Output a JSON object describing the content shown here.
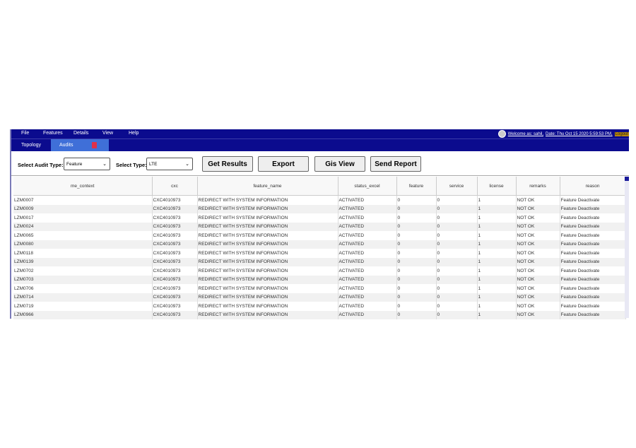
{
  "menu": [
    "File",
    "Features",
    "Details",
    "View",
    "Help"
  ],
  "user": {
    "welcome": "Welcome as: sahil,",
    "date": "Date: Thu Oct 15 2020 5:59:53 PM,",
    "logout": "Logout"
  },
  "tabs": [
    "Topology",
    "Audits"
  ],
  "toolbar": {
    "audit_label": "Select Audit Type:",
    "audit_value": "Feature",
    "type_label": "Select Type:",
    "type_value": "LTE",
    "get_results": "Get Results",
    "export": "Export",
    "gis_view": "Gis View",
    "send_report": "Send Report"
  },
  "columns": [
    "me_context",
    "cxc",
    "feature_name",
    "status_excel",
    "feature",
    "service",
    "license",
    "remarks",
    "reason"
  ],
  "rows": [
    [
      "LZM0007",
      "CXC4010973",
      "REDIRECT WITH SYSTEM INFORMATION",
      "ACTIVATED",
      "0",
      "0",
      "1",
      "NOT OK",
      "Feature Deactivate"
    ],
    [
      "LZM0009",
      "CXC4010973",
      "REDIRECT WITH SYSTEM INFORMATION",
      "ACTIVATED",
      "0",
      "0",
      "1",
      "NOT OK",
      "Feature Deactivate"
    ],
    [
      "LZM0017",
      "CXC4010973",
      "REDIRECT WITH SYSTEM INFORMATION",
      "ACTIVATED",
      "0",
      "0",
      "1",
      "NOT OK",
      "Feature Deactivate"
    ],
    [
      "LZM0024",
      "CXC4010973",
      "REDIRECT WITH SYSTEM INFORMATION",
      "ACTIVATED",
      "0",
      "0",
      "1",
      "NOT OK",
      "Feature Deactivate"
    ],
    [
      "LZM0065",
      "CXC4010973",
      "REDIRECT WITH SYSTEM INFORMATION",
      "ACTIVATED",
      "0",
      "0",
      "1",
      "NOT OK",
      "Feature Deactivate"
    ],
    [
      "LZM0080",
      "CXC4010973",
      "REDIRECT WITH SYSTEM INFORMATION",
      "ACTIVATED",
      "0",
      "0",
      "1",
      "NOT OK",
      "Feature Deactivate"
    ],
    [
      "LZM0118",
      "CXC4010973",
      "REDIRECT WITH SYSTEM INFORMATION",
      "ACTIVATED",
      "0",
      "0",
      "1",
      "NOT OK",
      "Feature Deactivate"
    ],
    [
      "LZM0139",
      "CXC4010973",
      "REDIRECT WITH SYSTEM INFORMATION",
      "ACTIVATED",
      "0",
      "0",
      "1",
      "NOT OK",
      "Feature Deactivate"
    ],
    [
      "LZM0702",
      "CXC4010973",
      "REDIRECT WITH SYSTEM INFORMATION",
      "ACTIVATED",
      "0",
      "0",
      "1",
      "NOT OK",
      "Feature Deactivate"
    ],
    [
      "LZM0703",
      "CXC4010973",
      "REDIRECT WITH SYSTEM INFORMATION",
      "ACTIVATED",
      "0",
      "0",
      "1",
      "NOT OK",
      "Feature Deactivate"
    ],
    [
      "LZM0706",
      "CXC4010973",
      "REDIRECT WITH SYSTEM INFORMATION",
      "ACTIVATED",
      "0",
      "0",
      "1",
      "NOT OK",
      "Feature Deactivate"
    ],
    [
      "LZM0714",
      "CXC4010973",
      "REDIRECT WITH SYSTEM INFORMATION",
      "ACTIVATED",
      "0",
      "0",
      "1",
      "NOT OK",
      "Feature Deactivate"
    ],
    [
      "LZM0719",
      "CXC4010973",
      "REDIRECT WITH SYSTEM INFORMATION",
      "ACTIVATED",
      "0",
      "0",
      "1",
      "NOT OK",
      "Feature Deactivate"
    ],
    [
      "LZM0966",
      "CXC4010973",
      "REDIRECT WITH SYSTEM INFORMATION",
      "ACTIVATED",
      "0",
      "0",
      "1",
      "NOT OK",
      "Feature Deactivate"
    ]
  ]
}
